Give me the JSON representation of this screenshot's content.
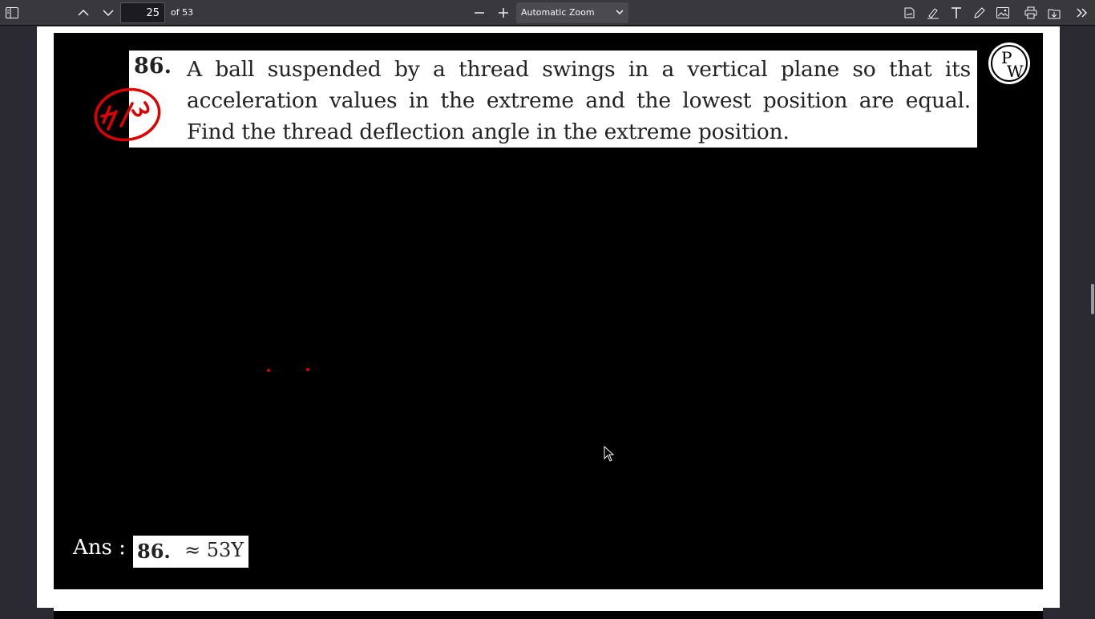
{
  "toolbar": {
    "page_number": "25",
    "page_count": "of 53",
    "zoom_label": "Automatic Zoom",
    "icons": [
      "sidebar-toggle-icon",
      "previous-page-icon",
      "next-page-icon",
      "zoom-out-icon",
      "zoom-in-icon",
      "chevron-down-icon",
      "signature-icon",
      "highlight-icon",
      "text-icon",
      "draw-icon",
      "image-icon",
      "print-icon",
      "save-icon",
      "more-tools-icon"
    ]
  },
  "slide": {
    "question_number": "86.",
    "question_text": "A ball suspended by a thread swings in a vertical plane so that its acceleration values in the extreme and the lowest position are equal. Find the thread deflection angle in the extreme position.",
    "hw_mark": "H/W",
    "logo_text": "PW",
    "answer_label": "Ans :",
    "answer_number": "86.",
    "answer_value": "≈ 53Υ"
  },
  "colors": {
    "toolbar_bg": "#38383d",
    "viewer_bg": "#2b2a33",
    "slide_bg": "#000000",
    "annotation_red": "#e00000"
  }
}
